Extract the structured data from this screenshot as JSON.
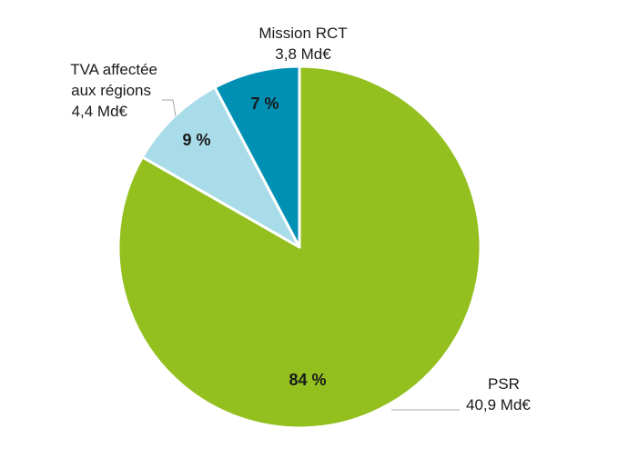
{
  "chart_data": {
    "type": "pie",
    "title": "",
    "slices": [
      {
        "name": "PSR",
        "value_label": "40,9 Md€",
        "value": 40.9,
        "percent": 84,
        "percent_label": "84 %",
        "color": "#93c01f"
      },
      {
        "name": "TVA affectée aux régions",
        "name_lines": [
          "TVA affectée",
          "aux régions"
        ],
        "value_label": "4,4 Md€",
        "value": 4.4,
        "percent": 9,
        "percent_label": "9 %",
        "color": "#a8dce9"
      },
      {
        "name": "Mission RCT",
        "value_label": "3,8 Md€",
        "value": 3.8,
        "percent": 7,
        "percent_label": "7 %",
        "color": "#0090b3"
      }
    ],
    "start": "12 o'clock",
    "direction": "clockwise"
  }
}
